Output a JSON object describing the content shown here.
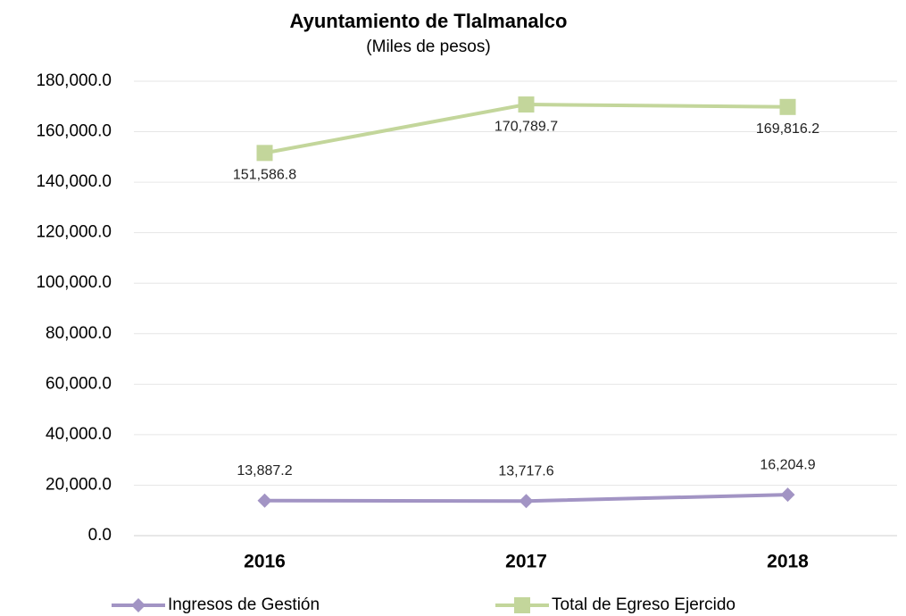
{
  "chart_data": {
    "type": "line",
    "title": "Ayuntamiento  de  Tlalmanalco",
    "subtitle": "(Miles de pesos)",
    "categories": [
      "2016",
      "2017",
      "2018"
    ],
    "series": [
      {
        "name": "Ingresos de Gestión",
        "color": "#a294c4",
        "marker": "diamond",
        "values": [
          13887.2,
          13717.6,
          16204.9
        ],
        "value_labels": [
          "13,887.2",
          "13,717.6",
          "16,204.9"
        ]
      },
      {
        "name": "Total de Egreso Ejercido",
        "color": "#c3d69b",
        "marker": "square",
        "values": [
          151586.8,
          170789.7,
          169816.2
        ],
        "value_labels": [
          "151,586.8",
          "170,789.7",
          "169,816.2"
        ]
      }
    ],
    "ylim": [
      0,
      180000
    ],
    "yticks": [
      {
        "value": 0,
        "label": "0.0"
      },
      {
        "value": 20000,
        "label": "20,000.0"
      },
      {
        "value": 40000,
        "label": "40,000.0"
      },
      {
        "value": 60000,
        "label": "60,000.0"
      },
      {
        "value": 80000,
        "label": "80,000.0"
      },
      {
        "value": 100000,
        "label": "100,000.0"
      },
      {
        "value": 120000,
        "label": "120,000.0"
      },
      {
        "value": 140000,
        "label": "140,000.0"
      },
      {
        "value": 160000,
        "label": "160,000.0"
      },
      {
        "value": 180000,
        "label": "180,000.0"
      }
    ],
    "grid": true,
    "legend": "bottom"
  }
}
